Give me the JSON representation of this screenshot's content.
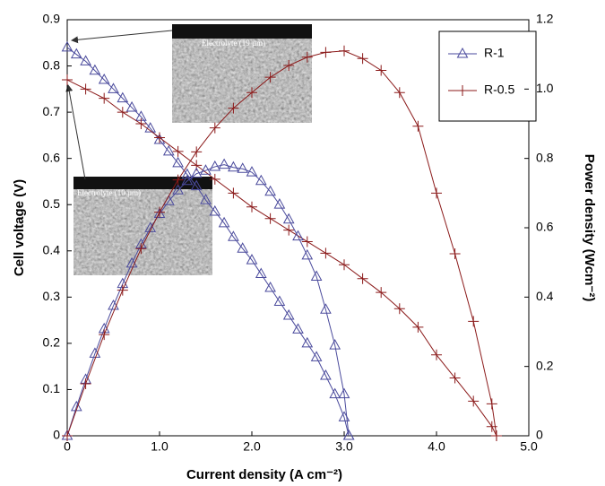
{
  "chart_data": {
    "type": "line",
    "xlabel": "Current density (A cm⁻²)",
    "ylabel": "Cell voltage (V)",
    "y2label": "Power density (Wcm⁻²)",
    "xlim": [
      0,
      5
    ],
    "xticks": [
      0,
      {
        "value": 1,
        "label": "1.0"
      },
      {
        "value": 2,
        "label": "2.0"
      },
      {
        "value": 3,
        "label": "3.0"
      },
      {
        "value": 4,
        "label": "4.0"
      },
      {
        "value": 5,
        "label": "5.0"
      }
    ],
    "ylim": [
      0,
      0.9
    ],
    "yticks": [
      0,
      0.1,
      0.2,
      0.3,
      0.4,
      0.5,
      0.6,
      0.7,
      0.8,
      0.9
    ],
    "y2lim": [
      0,
      1.2
    ],
    "y2ticks": [
      0,
      0.2,
      0.4,
      0.6,
      0.8,
      {
        "value": 1,
        "label": "1.0"
      },
      1.2
    ],
    "legend": "upper right",
    "annotations": [
      "Electrolyte (19 µm)",
      "Electrolyte (10 µm)"
    ],
    "series": [
      {
        "name": "R-1",
        "color": "#4a4a9c",
        "marker": "triangle",
        "x": [
          0,
          0.1,
          0.2,
          0.3,
          0.4,
          0.5,
          0.6,
          0.7,
          0.8,
          0.9,
          1.0,
          1.1,
          1.2,
          1.3,
          1.4,
          1.5,
          1.6,
          1.7,
          1.8,
          1.9,
          2.0,
          2.1,
          2.2,
          2.3,
          2.4,
          2.5,
          2.6,
          2.7,
          2.8,
          2.9,
          3.0,
          3.05
        ],
        "values": [
          0.84,
          0.825,
          0.81,
          0.79,
          0.77,
          0.75,
          0.73,
          0.71,
          0.69,
          0.665,
          0.64,
          0.615,
          0.59,
          0.565,
          0.54,
          0.51,
          0.485,
          0.46,
          0.43,
          0.405,
          0.38,
          0.35,
          0.32,
          0.29,
          0.26,
          0.23,
          0.2,
          0.17,
          0.13,
          0.09,
          0.04,
          0
        ]
      },
      {
        "name": "R-0.5",
        "color": "#8b1a1a",
        "marker": "plus",
        "x": [
          0,
          0.2,
          0.4,
          0.6,
          0.8,
          1.0,
          1.2,
          1.4,
          1.6,
          1.8,
          2.0,
          2.2,
          2.4,
          2.6,
          2.8,
          3.0,
          3.2,
          3.4,
          3.6,
          3.8,
          4.0,
          4.2,
          4.4,
          4.6,
          4.65
        ],
        "values": [
          0.77,
          0.75,
          0.73,
          0.7,
          0.675,
          0.645,
          0.615,
          0.585,
          0.555,
          0.525,
          0.495,
          0.47,
          0.445,
          0.42,
          0.395,
          0.37,
          0.34,
          0.31,
          0.275,
          0.235,
          0.175,
          0.125,
          0.075,
          0.02,
          0
        ]
      },
      {
        "name": "R-1",
        "color": "#4a4a9c",
        "marker": "triangle",
        "axis": "y2",
        "x": [
          0,
          0.1,
          0.2,
          0.3,
          0.4,
          0.5,
          0.6,
          0.7,
          0.8,
          0.9,
          1.0,
          1.1,
          1.2,
          1.3,
          1.4,
          1.5,
          1.6,
          1.7,
          1.8,
          1.9,
          2.0,
          2.1,
          2.2,
          2.3,
          2.4,
          2.5,
          2.6,
          2.7,
          2.8,
          2.9,
          3.0,
          3.05
        ],
        "values": [
          0,
          0.083,
          0.162,
          0.237,
          0.308,
          0.375,
          0.438,
          0.497,
          0.552,
          0.599,
          0.64,
          0.677,
          0.708,
          0.735,
          0.756,
          0.765,
          0.776,
          0.782,
          0.774,
          0.77,
          0.76,
          0.735,
          0.704,
          0.667,
          0.624,
          0.575,
          0.52,
          0.459,
          0.364,
          0.261,
          0.12,
          0
        ]
      },
      {
        "name": "R-0.5",
        "color": "#8b1a1a",
        "marker": "plus",
        "axis": "y2",
        "x": [
          0,
          0.2,
          0.4,
          0.6,
          0.8,
          1.0,
          1.2,
          1.4,
          1.6,
          1.8,
          2.0,
          2.2,
          2.4,
          2.6,
          2.8,
          3.0,
          3.2,
          3.4,
          3.6,
          3.8,
          4.0,
          4.2,
          4.4,
          4.6,
          4.65
        ],
        "values": [
          0,
          0.15,
          0.292,
          0.42,
          0.54,
          0.645,
          0.738,
          0.819,
          0.888,
          0.945,
          0.99,
          1.034,
          1.068,
          1.092,
          1.106,
          1.11,
          1.088,
          1.054,
          0.99,
          0.893,
          0.7,
          0.525,
          0.33,
          0.092,
          0
        ]
      }
    ]
  }
}
